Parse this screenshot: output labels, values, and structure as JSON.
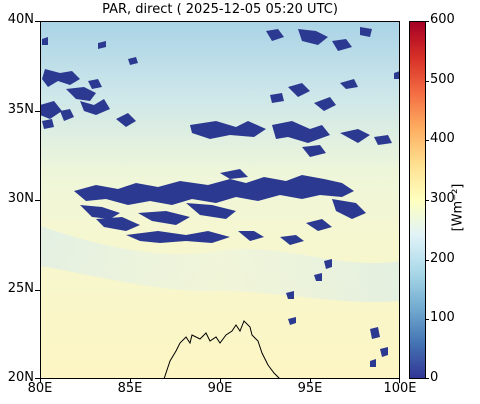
{
  "title": "PAR, direct ( 2025-12-05 05:20 UTC)",
  "map": {
    "lat_ticks": [
      "40N",
      "35N",
      "30N",
      "25N",
      "20N"
    ],
    "lon_ticks": [
      "80E",
      "85E",
      "90E",
      "95E",
      "100E"
    ],
    "lat_range": [
      20,
      40
    ],
    "lon_range": [
      80,
      100
    ]
  },
  "colorbar": {
    "ticks": [
      "600",
      "500",
      "400",
      "300",
      "200",
      "100",
      "0"
    ],
    "unit_label": "[Wm⁻²]",
    "range": [
      0,
      600
    ],
    "colors": [
      "#313695",
      "#4575b4",
      "#74add1",
      "#abd9e9",
      "#e0f3f8",
      "#ffffbf",
      "#fee090",
      "#fdae61",
      "#f46d43",
      "#d73027",
      "#a50026"
    ]
  },
  "colors": {
    "cloud": "#2b3990",
    "sky_high": "#aed6e8",
    "sky_low": "#fbf6c4",
    "coast": "#000000"
  }
}
